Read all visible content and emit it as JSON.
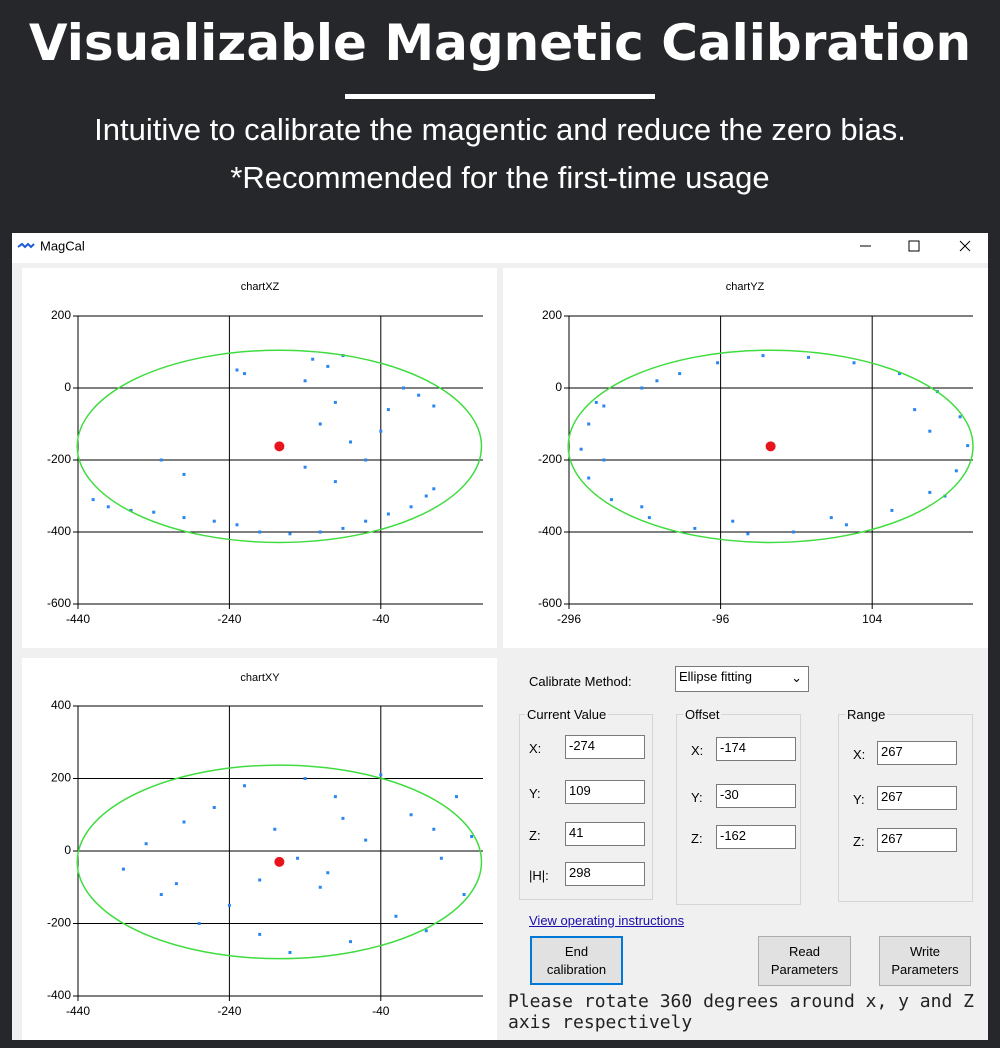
{
  "header": {
    "title": "Visualizable Magnetic Calibration",
    "subtitle": [
      "Intuitive to calibrate the magentic and reduce the zero bias.",
      "*Recommended for the first-time usage"
    ]
  },
  "window": {
    "title": "MagCal"
  },
  "charts": [
    {
      "type": "scatter",
      "title": "chartXZ",
      "xlim": [
        -440,
        95
      ],
      "ylim": [
        -600,
        200
      ],
      "xticks": [
        -440,
        -240,
        -40
      ],
      "yticks": [
        -600,
        -400,
        -200,
        0,
        200
      ],
      "x": [
        -420,
        -400,
        -370,
        -340,
        -300,
        -260,
        -230,
        -200,
        -160,
        -120,
        -90,
        -60,
        -30,
        0,
        20,
        30,
        -130,
        -110,
        -90,
        -140,
        -100,
        -120,
        -80,
        -140,
        -100,
        -60,
        -40,
        -30,
        -10,
        10,
        30,
        -220,
        -230,
        -330,
        -300
      ],
      "y": [
        -310,
        -330,
        -340,
        -345,
        -360,
        -370,
        -380,
        -400,
        -405,
        -400,
        -390,
        -370,
        -350,
        -330,
        -300,
        -280,
        80,
        60,
        90,
        20,
        -40,
        -100,
        -150,
        -220,
        -260,
        -200,
        -120,
        -60,
        0,
        -20,
        -50,
        40,
        50,
        -200,
        -240
      ]
    },
    {
      "type": "scatter",
      "title": "chartYZ",
      "xlim": [
        -296,
        237
      ],
      "ylim": [
        -600,
        200
      ],
      "xticks": [
        -296,
        -96,
        104
      ],
      "yticks": [
        -600,
        -400,
        -200,
        0,
        200
      ],
      "x": [
        -280,
        -270,
        -250,
        -200,
        -150,
        -100,
        -40,
        20,
        80,
        140,
        190,
        220,
        230,
        215,
        180,
        130,
        70,
        0,
        -60,
        -130,
        -190,
        -240,
        -270,
        -260,
        -180,
        160,
        200,
        -200,
        50,
        -80,
        -250,
        180
      ],
      "y": [
        -170,
        -100,
        -50,
        0,
        40,
        70,
        90,
        85,
        70,
        40,
        -10,
        -80,
        -160,
        -230,
        -290,
        -340,
        -380,
        -400,
        -405,
        -390,
        -360,
        -310,
        -250,
        -40,
        20,
        -60,
        -300,
        -330,
        -360,
        -370,
        -200,
        -120
      ]
    },
    {
      "type": "scatter",
      "title": "chartXY",
      "xlim": [
        -440,
        95
      ],
      "ylim": [
        -400,
        400
      ],
      "xticks": [
        -440,
        -240,
        -40
      ],
      "yticks": [
        -400,
        -200,
        0,
        200,
        400
      ],
      "x": [
        -380,
        -350,
        -330,
        -300,
        -280,
        -260,
        -240,
        -220,
        -200,
        -180,
        -160,
        -140,
        -120,
        -100,
        -80,
        -60,
        -40,
        -20,
        0,
        20,
        40,
        60,
        70,
        80,
        -150,
        -110,
        -200,
        -310,
        -90,
        30
      ],
      "y": [
        -50,
        20,
        -120,
        80,
        -200,
        120,
        -150,
        180,
        -230,
        60,
        -280,
        200,
        -100,
        150,
        -250,
        30,
        210,
        -180,
        100,
        -220,
        -20,
        150,
        -120,
        40,
        -20,
        -60,
        -80,
        -90,
        90,
        60
      ]
    }
  ],
  "controls": {
    "method_label": "Calibrate Method:",
    "method": "Ellipse fitting",
    "groups": [
      {
        "title": "Current Value",
        "fields": [
          {
            "label": "X:",
            "value": -274
          },
          {
            "label": "Y:",
            "value": 109
          },
          {
            "label": "Z:",
            "value": 41
          },
          {
            "label": "|H|:",
            "value": 298
          }
        ]
      },
      {
        "title": "Offset",
        "fields": [
          {
            "label": "X:",
            "value": -174
          },
          {
            "label": "Y:",
            "value": -30
          },
          {
            "label": "Z:",
            "value": -162
          }
        ]
      },
      {
        "title": "Range",
        "fields": [
          {
            "label": "X:",
            "value": 267
          },
          {
            "label": "Y:",
            "value": 267
          },
          {
            "label": "Z:",
            "value": 267
          }
        ]
      }
    ],
    "link": "View operating instructions",
    "buttons": [
      "End calibration",
      "Read Parameters",
      "Write Parameters"
    ],
    "status": "Please rotate 360 degrees around x, y and Z axis respectively"
  }
}
